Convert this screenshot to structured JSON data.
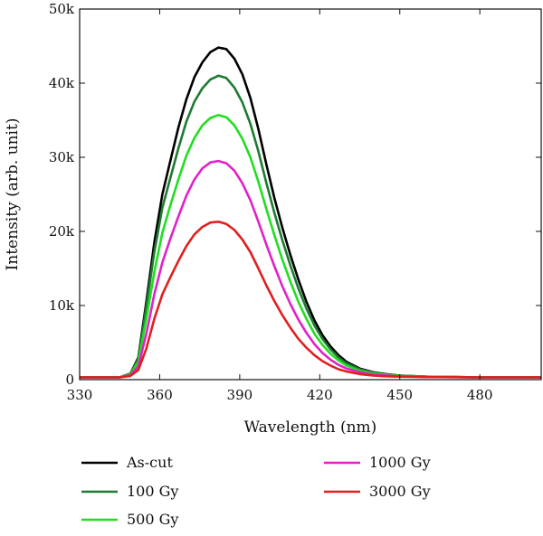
{
  "chart_data": {
    "type": "line",
    "title": "",
    "xlabel": "Wavelength (nm)",
    "ylabel": "Intensity (arb. unit)",
    "xlim": [
      330,
      503
    ],
    "ylim": [
      0,
      50000
    ],
    "x_ticks": [
      330,
      360,
      390,
      420,
      450,
      480
    ],
    "x_tick_labels": [
      "330",
      "360",
      "390",
      "420",
      "450",
      "480"
    ],
    "y_ticks": [
      0,
      10000,
      20000,
      30000,
      40000,
      50000
    ],
    "y_tick_labels": [
      "0",
      "10k",
      "20k",
      "30k",
      "40k",
      "50k"
    ],
    "grid": false,
    "legend_position": "bottom",
    "series": [
      {
        "name": "As-cut",
        "color": "#000000",
        "points": [
          [
            330,
            300
          ],
          [
            345,
            300
          ],
          [
            349,
            800
          ],
          [
            352,
            3000
          ],
          [
            355,
            10500
          ],
          [
            358,
            18500
          ],
          [
            361,
            25000
          ],
          [
            364,
            29500
          ],
          [
            367,
            34000
          ],
          [
            370,
            37800
          ],
          [
            373,
            40800
          ],
          [
            376,
            42800
          ],
          [
            379,
            44200
          ],
          [
            382,
            44800
          ],
          [
            385,
            44600
          ],
          [
            388,
            43300
          ],
          [
            391,
            41200
          ],
          [
            394,
            38000
          ],
          [
            397,
            33800
          ],
          [
            400,
            29000
          ],
          [
            403,
            24500
          ],
          [
            406,
            20500
          ],
          [
            409,
            16800
          ],
          [
            412,
            13500
          ],
          [
            415,
            10500
          ],
          [
            418,
            8000
          ],
          [
            421,
            6000
          ],
          [
            424,
            4500
          ],
          [
            427,
            3300
          ],
          [
            430,
            2400
          ],
          [
            435,
            1500
          ],
          [
            440,
            1000
          ],
          [
            445,
            750
          ],
          [
            450,
            550
          ],
          [
            460,
            400
          ],
          [
            480,
            300
          ],
          [
            503,
            300
          ]
        ]
      },
      {
        "name": "100 Gy",
        "color": "#1e7b32",
        "points": [
          [
            330,
            300
          ],
          [
            345,
            300
          ],
          [
            349,
            800
          ],
          [
            352,
            2800
          ],
          [
            355,
            9800
          ],
          [
            358,
            17200
          ],
          [
            361,
            23200
          ],
          [
            364,
            27200
          ],
          [
            367,
            31200
          ],
          [
            370,
            34800
          ],
          [
            373,
            37500
          ],
          [
            376,
            39300
          ],
          [
            379,
            40500
          ],
          [
            382,
            41000
          ],
          [
            385,
            40700
          ],
          [
            388,
            39400
          ],
          [
            391,
            37400
          ],
          [
            394,
            34500
          ],
          [
            397,
            30800
          ],
          [
            400,
            26500
          ],
          [
            403,
            22500
          ],
          [
            406,
            18800
          ],
          [
            409,
            15400
          ],
          [
            412,
            12300
          ],
          [
            415,
            9600
          ],
          [
            418,
            7300
          ],
          [
            421,
            5500
          ],
          [
            424,
            4100
          ],
          [
            427,
            3000
          ],
          [
            430,
            2200
          ],
          [
            435,
            1400
          ],
          [
            440,
            950
          ],
          [
            445,
            700
          ],
          [
            450,
            550
          ],
          [
            460,
            400
          ],
          [
            480,
            300
          ],
          [
            503,
            300
          ]
        ]
      },
      {
        "name": "500 Gy",
        "color": "#22dd22",
        "points": [
          [
            330,
            300
          ],
          [
            345,
            300
          ],
          [
            349,
            700
          ],
          [
            352,
            2400
          ],
          [
            355,
            8200
          ],
          [
            358,
            14500
          ],
          [
            361,
            19800
          ],
          [
            364,
            23500
          ],
          [
            367,
            27000
          ],
          [
            370,
            30200
          ],
          [
            373,
            32600
          ],
          [
            376,
            34300
          ],
          [
            379,
            35300
          ],
          [
            382,
            35700
          ],
          [
            385,
            35400
          ],
          [
            388,
            34300
          ],
          [
            391,
            32500
          ],
          [
            394,
            30000
          ],
          [
            397,
            26700
          ],
          [
            400,
            23000
          ],
          [
            403,
            19500
          ],
          [
            406,
            16200
          ],
          [
            409,
            13200
          ],
          [
            412,
            10500
          ],
          [
            415,
            8200
          ],
          [
            418,
            6200
          ],
          [
            421,
            4700
          ],
          [
            424,
            3500
          ],
          [
            427,
            2600
          ],
          [
            430,
            1900
          ],
          [
            435,
            1200
          ],
          [
            440,
            850
          ],
          [
            445,
            650
          ],
          [
            450,
            500
          ],
          [
            460,
            400
          ],
          [
            480,
            300
          ],
          [
            503,
            300
          ]
        ]
      },
      {
        "name": "1000 Gy",
        "color": "#e022c8",
        "points": [
          [
            330,
            300
          ],
          [
            345,
            300
          ],
          [
            349,
            600
          ],
          [
            352,
            1800
          ],
          [
            355,
            6200
          ],
          [
            358,
            11500
          ],
          [
            361,
            15800
          ],
          [
            364,
            19000
          ],
          [
            367,
            22000
          ],
          [
            370,
            24800
          ],
          [
            373,
            27000
          ],
          [
            376,
            28500
          ],
          [
            379,
            29300
          ],
          [
            382,
            29500
          ],
          [
            385,
            29200
          ],
          [
            388,
            28200
          ],
          [
            391,
            26500
          ],
          [
            394,
            24200
          ],
          [
            397,
            21300
          ],
          [
            400,
            18200
          ],
          [
            403,
            15300
          ],
          [
            406,
            12600
          ],
          [
            409,
            10200
          ],
          [
            412,
            8100
          ],
          [
            415,
            6300
          ],
          [
            418,
            4800
          ],
          [
            421,
            3600
          ],
          [
            424,
            2700
          ],
          [
            427,
            2000
          ],
          [
            430,
            1500
          ],
          [
            435,
            1000
          ],
          [
            440,
            700
          ],
          [
            445,
            550
          ],
          [
            450,
            450
          ],
          [
            460,
            350
          ],
          [
            480,
            300
          ],
          [
            503,
            300
          ]
        ]
      },
      {
        "name": "3000 Gy",
        "color": "#e02020",
        "points": [
          [
            330,
            300
          ],
          [
            345,
            300
          ],
          [
            349,
            500
          ],
          [
            352,
            1300
          ],
          [
            355,
            4200
          ],
          [
            358,
            8200
          ],
          [
            361,
            11500
          ],
          [
            364,
            13800
          ],
          [
            367,
            16000
          ],
          [
            370,
            18000
          ],
          [
            373,
            19600
          ],
          [
            376,
            20600
          ],
          [
            379,
            21200
          ],
          [
            382,
            21300
          ],
          [
            385,
            21000
          ],
          [
            388,
            20200
          ],
          [
            391,
            18900
          ],
          [
            394,
            17200
          ],
          [
            397,
            15000
          ],
          [
            400,
            12700
          ],
          [
            403,
            10600
          ],
          [
            406,
            8700
          ],
          [
            409,
            7000
          ],
          [
            412,
            5500
          ],
          [
            415,
            4300
          ],
          [
            418,
            3300
          ],
          [
            421,
            2500
          ],
          [
            424,
            1900
          ],
          [
            427,
            1400
          ],
          [
            430,
            1100
          ],
          [
            435,
            750
          ],
          [
            440,
            550
          ],
          [
            445,
            450
          ],
          [
            450,
            400
          ],
          [
            460,
            350
          ],
          [
            480,
            300
          ],
          [
            503,
            300
          ]
        ]
      }
    ]
  }
}
